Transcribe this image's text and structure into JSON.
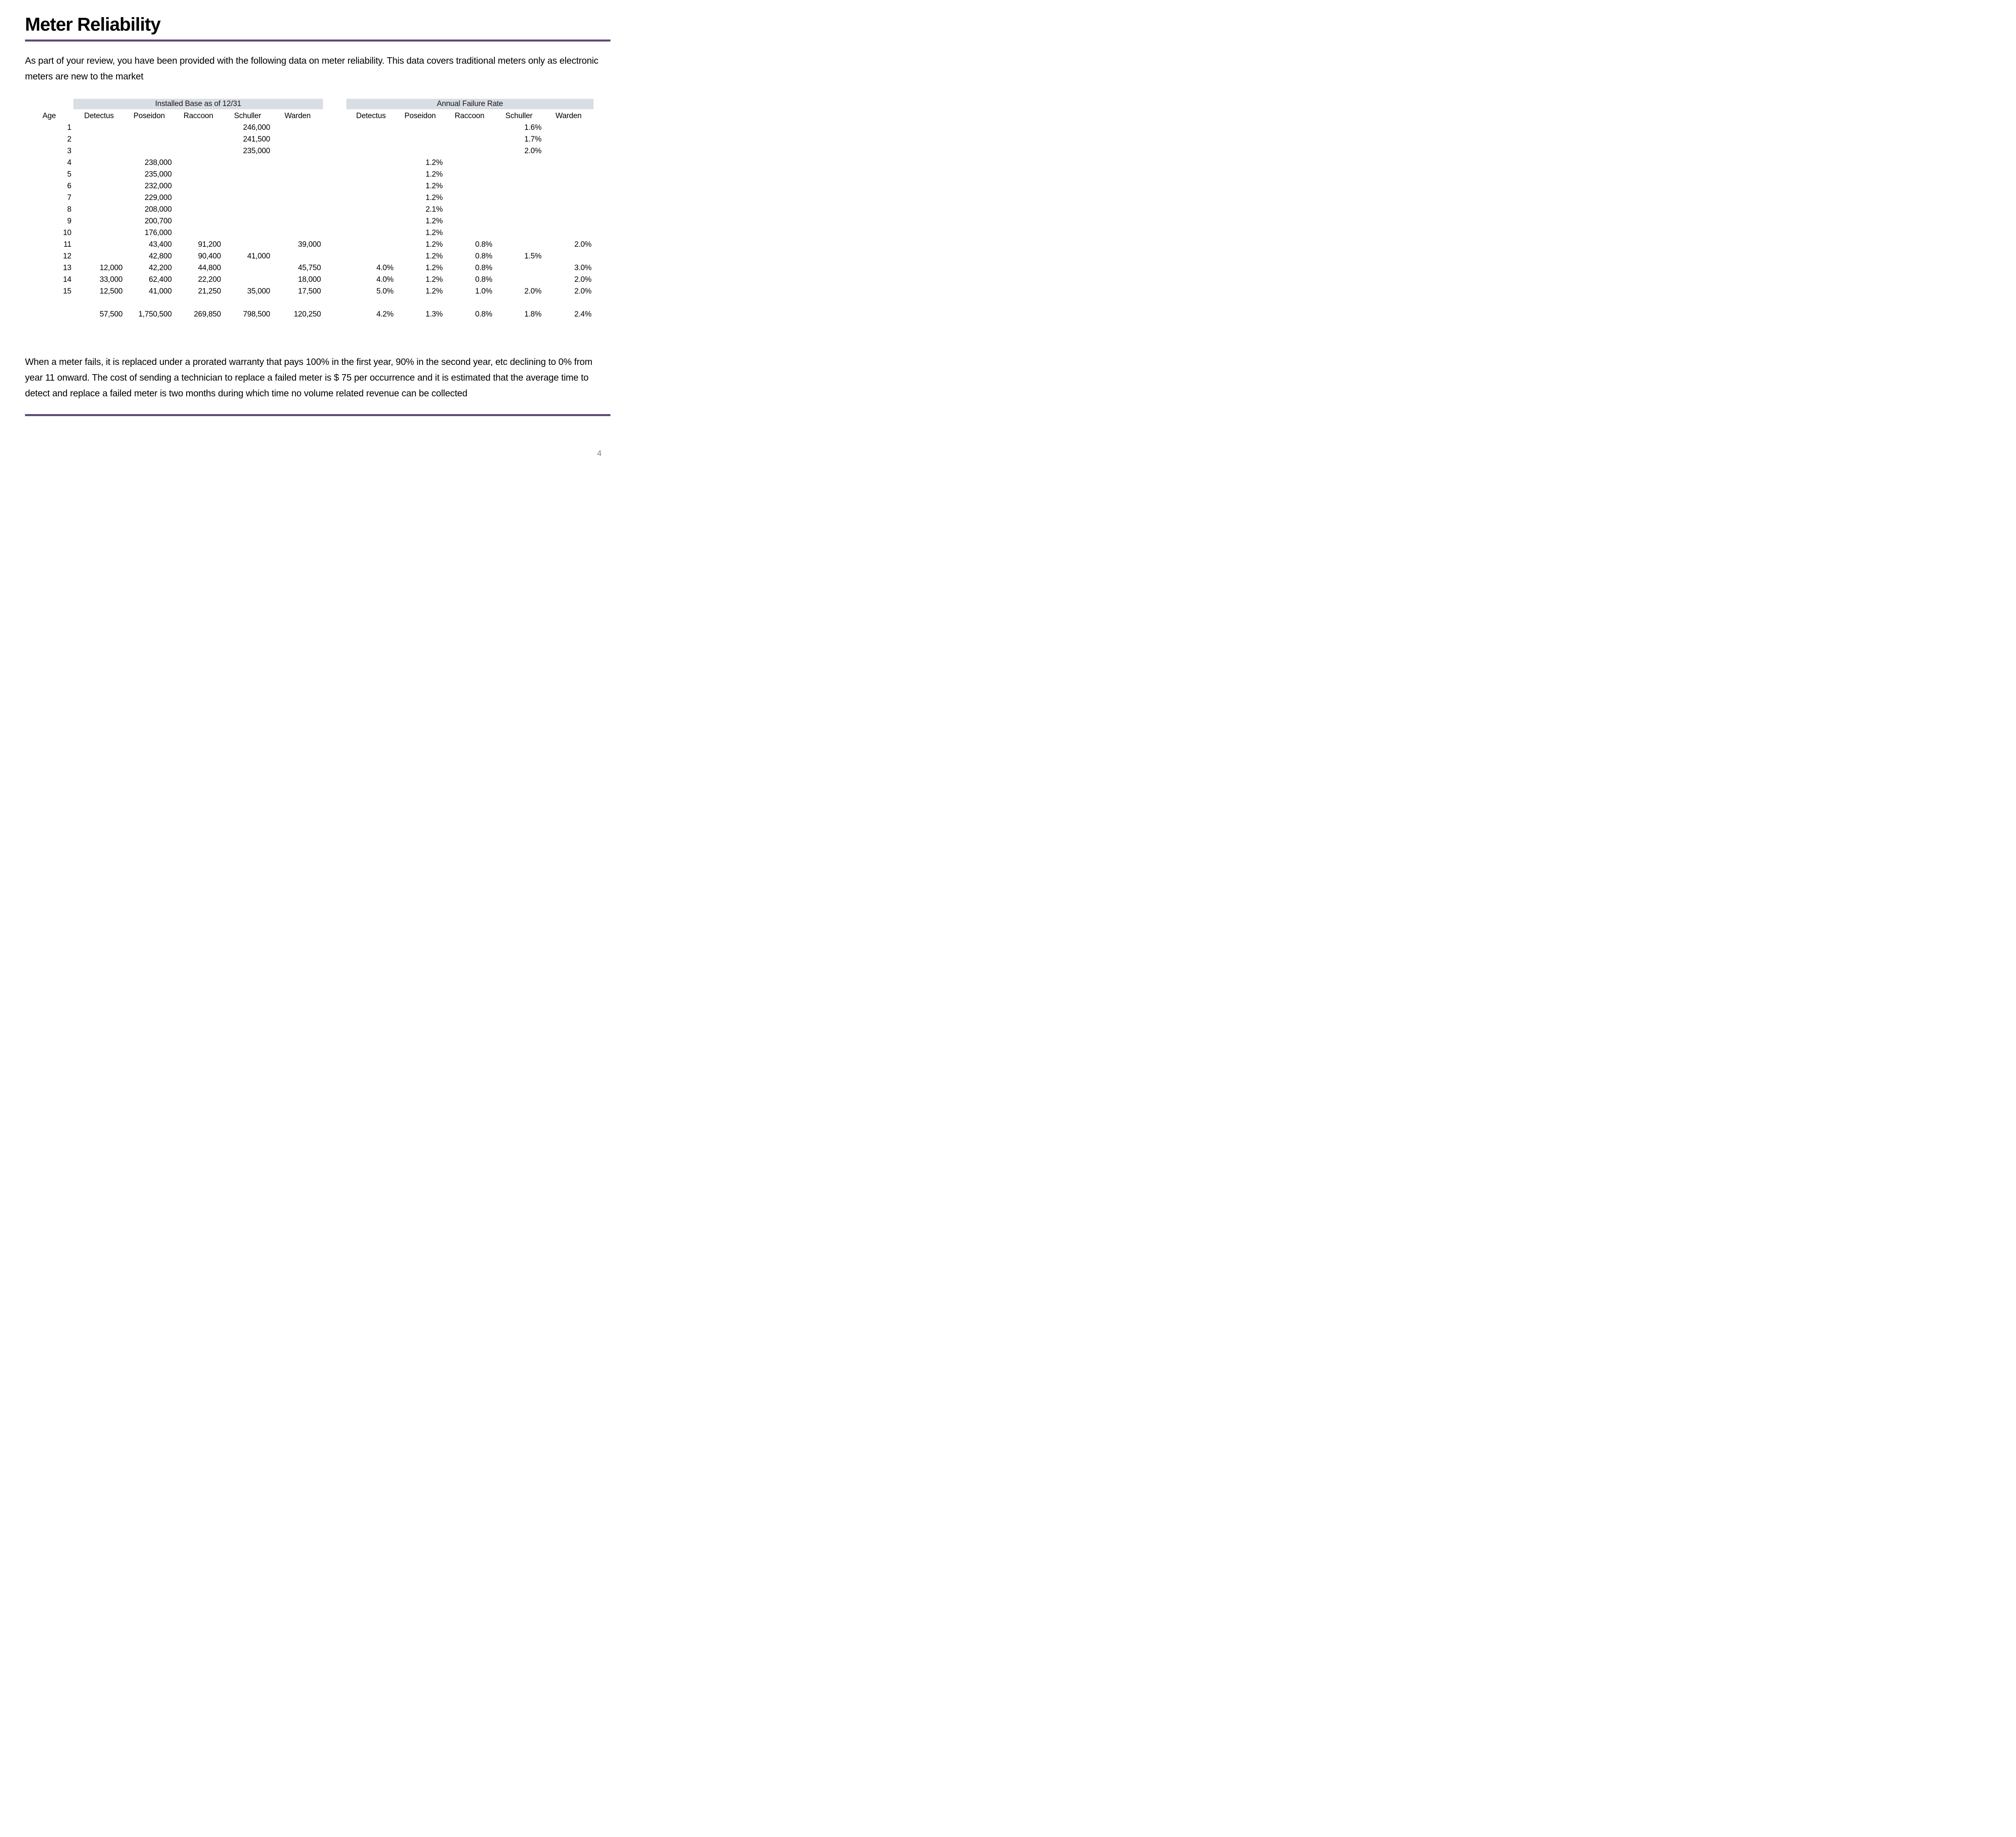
{
  "page": {
    "title": "Meter Reliability",
    "page_number": "4",
    "accent_color": "#5b4a7a",
    "band_color": "#d9dde4"
  },
  "intro": "As part of your review, you have been provided with the following data on meter reliability.  This data covers traditional meters only as electronic meters are new to the market",
  "footer_note": "When a meter fails, it is replaced under a prorated warranty that pays 100% in the first year, 90% in the second year, etc declining to 0% from year 11 onward. The cost of sending a technician to replace a failed meter is $ 75 per occurrence and it is estimated that the average time to detect and replace a failed meter is two months during which time no volume related revenue can be collected",
  "table": {
    "age_header": "Age",
    "group_headers": [
      "Installed Base as of 12/31",
      "Annual Failure Rate"
    ],
    "columns": [
      "Detectus",
      "Poseidon",
      "Raccoon",
      "Schuller",
      "Warden"
    ],
    "rows": [
      {
        "age": "1",
        "installed": [
          "",
          "",
          "",
          "246,000",
          ""
        ],
        "failure": [
          "",
          "",
          "",
          "1.6%",
          ""
        ]
      },
      {
        "age": "2",
        "installed": [
          "",
          "",
          "",
          "241,500",
          ""
        ],
        "failure": [
          "",
          "",
          "",
          "1.7%",
          ""
        ]
      },
      {
        "age": "3",
        "installed": [
          "",
          "",
          "",
          "235,000",
          ""
        ],
        "failure": [
          "",
          "",
          "",
          "2.0%",
          ""
        ]
      },
      {
        "age": "4",
        "installed": [
          "",
          "238,000",
          "",
          "",
          ""
        ],
        "failure": [
          "",
          "1.2%",
          "",
          "",
          ""
        ]
      },
      {
        "age": "5",
        "installed": [
          "",
          "235,000",
          "",
          "",
          ""
        ],
        "failure": [
          "",
          "1.2%",
          "",
          "",
          ""
        ]
      },
      {
        "age": "6",
        "installed": [
          "",
          "232,000",
          "",
          "",
          ""
        ],
        "failure": [
          "",
          "1.2%",
          "",
          "",
          ""
        ]
      },
      {
        "age": "7",
        "installed": [
          "",
          "229,000",
          "",
          "",
          ""
        ],
        "failure": [
          "",
          "1.2%",
          "",
          "",
          ""
        ]
      },
      {
        "age": "8",
        "installed": [
          "",
          "208,000",
          "",
          "",
          ""
        ],
        "failure": [
          "",
          "2.1%",
          "",
          "",
          ""
        ]
      },
      {
        "age": "9",
        "installed": [
          "",
          "200,700",
          "",
          "",
          ""
        ],
        "failure": [
          "",
          "1.2%",
          "",
          "",
          ""
        ]
      },
      {
        "age": "10",
        "installed": [
          "",
          "176,000",
          "",
          "",
          ""
        ],
        "failure": [
          "",
          "1.2%",
          "",
          "",
          ""
        ]
      },
      {
        "age": "11",
        "installed": [
          "",
          "43,400",
          "91,200",
          "",
          "39,000"
        ],
        "failure": [
          "",
          "1.2%",
          "0.8%",
          "",
          "2.0%"
        ]
      },
      {
        "age": "12",
        "installed": [
          "",
          "42,800",
          "90,400",
          "41,000",
          ""
        ],
        "failure": [
          "",
          "1.2%",
          "0.8%",
          "1.5%",
          ""
        ]
      },
      {
        "age": "13",
        "installed": [
          "12,000",
          "42,200",
          "44,800",
          "",
          "45,750"
        ],
        "failure": [
          "4.0%",
          "1.2%",
          "0.8%",
          "",
          "3.0%"
        ]
      },
      {
        "age": "14",
        "installed": [
          "33,000",
          "62,400",
          "22,200",
          "",
          "18,000"
        ],
        "failure": [
          "4.0%",
          "1.2%",
          "0.8%",
          "",
          "2.0%"
        ]
      },
      {
        "age": "15",
        "installed": [
          "12,500",
          "41,000",
          "21,250",
          "35,000",
          "17,500"
        ],
        "failure": [
          "5.0%",
          "1.2%",
          "1.0%",
          "2.0%",
          "2.0%"
        ]
      }
    ],
    "totals": {
      "installed": [
        "57,500",
        "1,750,500",
        "269,850",
        "798,500",
        "120,250"
      ],
      "failure": [
        "4.2%",
        "1.3%",
        "0.8%",
        "1.8%",
        "2.4%"
      ]
    }
  }
}
